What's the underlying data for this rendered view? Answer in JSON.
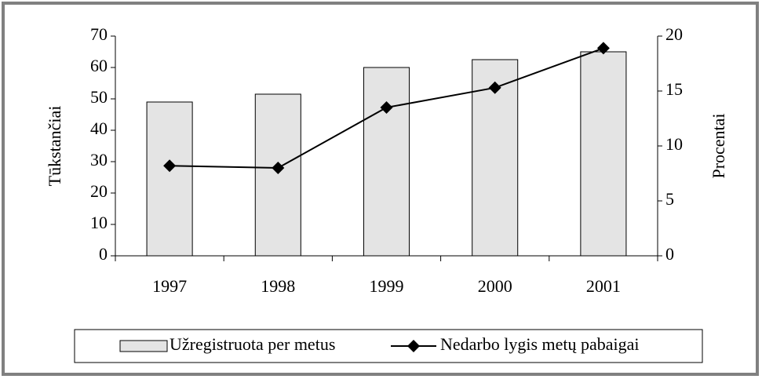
{
  "chart_data": {
    "type": "bar",
    "categories": [
      "1997",
      "1998",
      "1999",
      "2000",
      "2001"
    ],
    "series": [
      {
        "name": "Užregistruota per metus",
        "color": "#e4e4e4",
        "values": [
          49,
          51.5,
          60,
          62.5,
          65
        ]
      },
      {
        "name": "Nedarbo lygis metų pabaigai",
        "color": "#000000",
        "type": "line",
        "axis": "y2",
        "values": [
          8.2,
          8.0,
          13.5,
          15.3,
          18.9
        ]
      }
    ],
    "ylabel": "Tūkstančiai",
    "y2label": "Procentai",
    "ylim": [
      0,
      70
    ],
    "yticks": [
      0,
      10,
      20,
      30,
      40,
      50,
      60,
      70
    ],
    "y2lim": [
      0,
      20
    ],
    "y2ticks": [
      0,
      5,
      10,
      15,
      20
    ]
  }
}
